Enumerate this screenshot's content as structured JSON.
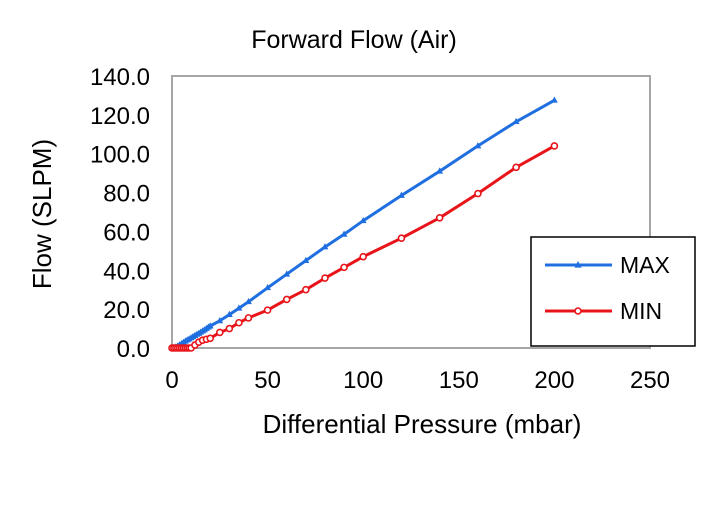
{
  "chart_data": {
    "type": "line",
    "title": "Forward Flow (Air)",
    "xlabel": "Differential Pressure (mbar)",
    "ylabel": "Flow (SLPM)",
    "xlim": [
      0,
      250
    ],
    "ylim": [
      0,
      140
    ],
    "x_ticks": [
      "0",
      "50",
      "100",
      "150",
      "200",
      "250"
    ],
    "y_ticks": [
      "0.0",
      "20.0",
      "40.0",
      "60.0",
      "80.0",
      "100.0",
      "120.0",
      "140.0"
    ],
    "grid": "none",
    "legend_position": "right",
    "series": [
      {
        "name": "MAX",
        "color": "#1f6fe0",
        "marker": "triangle",
        "x": [
          0,
          1,
          2,
          3,
          4,
          5,
          6,
          7,
          8,
          9,
          10,
          11,
          12,
          13,
          14,
          15,
          16,
          17,
          18,
          19,
          20,
          25,
          30,
          35,
          40,
          50,
          60,
          70,
          80,
          90,
          100,
          120,
          140,
          160,
          180,
          200
        ],
        "y": [
          0,
          0.2,
          0.5,
          1.0,
          1.6,
          2.2,
          2.9,
          3.5,
          4.1,
          4.6,
          5.2,
          5.8,
          6.4,
          7.0,
          7.5,
          8.1,
          8.7,
          9.3,
          10.0,
          10.7,
          11.3,
          14.0,
          17.2,
          20.5,
          23.8,
          31.0,
          38.0,
          45.0,
          52.0,
          58.5,
          65.5,
          78.5,
          91.0,
          104.0,
          116.5,
          127.5
        ]
      },
      {
        "name": "MIN",
        "color": "#e8141a",
        "marker": "circle",
        "x": [
          0,
          1,
          2,
          3,
          4,
          5,
          6,
          7,
          8,
          9,
          10,
          12,
          14,
          16,
          18,
          20,
          25,
          30,
          35,
          40,
          50,
          60,
          70,
          80,
          90,
          100,
          120,
          140,
          160,
          180,
          200
        ],
        "y": [
          0,
          0,
          0,
          0,
          0,
          0,
          0,
          0,
          0,
          0,
          0,
          1.5,
          3.0,
          4.0,
          4.5,
          5.0,
          8.0,
          10.0,
          13.0,
          15.5,
          19.5,
          25.0,
          30.0,
          36.0,
          41.5,
          47.0,
          56.5,
          67.0,
          79.5,
          93.0,
          104.0
        ]
      }
    ]
  }
}
